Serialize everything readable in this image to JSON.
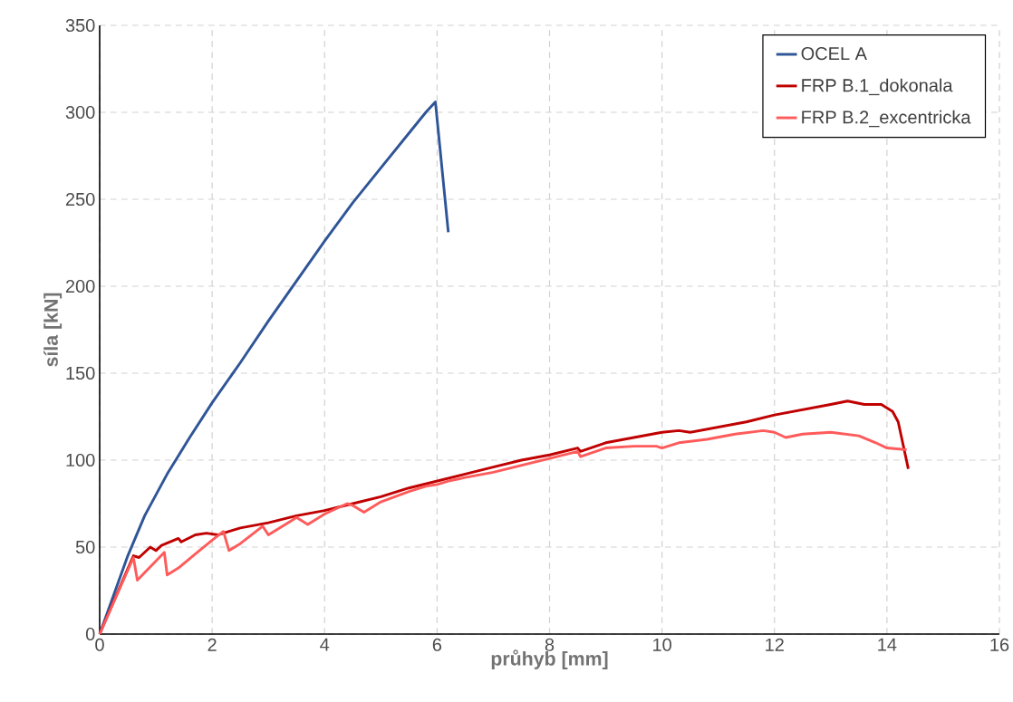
{
  "chart_data": {
    "type": "line",
    "xlabel": "průhyb [mm]",
    "ylabel": "síla [kN]",
    "xlim": [
      0,
      16
    ],
    "ylim": [
      0,
      350
    ],
    "xticks": [
      0,
      2,
      4,
      6,
      8,
      10,
      12,
      14,
      16
    ],
    "yticks": [
      0,
      50,
      100,
      150,
      200,
      250,
      300,
      350
    ],
    "grid": true,
    "legend": "top right",
    "marker": "none",
    "line_style": "solid",
    "series": [
      {
        "name": "OCEL A",
        "color": "#2f5597",
        "x": [
          0,
          0.5,
          0.8,
          1.0,
          1.2,
          1.6,
          2,
          2.5,
          3,
          3.5,
          4,
          4.5,
          5,
          5.5,
          5.8,
          5.97,
          6.2
        ],
        "values": [
          0,
          45,
          68,
          80,
          92,
          113,
          133,
          156,
          180,
          203,
          226,
          248,
          268,
          288,
          300,
          306,
          231
        ]
      },
      {
        "name": "FRP B.1_dokonala",
        "color": "#c00000",
        "x": [
          0,
          0.6,
          0.7,
          0.9,
          1.0,
          1.1,
          1.4,
          1.45,
          1.7,
          1.9,
          2.1,
          2.3,
          2.5,
          3,
          3.5,
          4,
          4.5,
          5,
          5.5,
          6,
          6.5,
          7,
          7.5,
          8,
          8.5,
          8.55,
          9,
          9.5,
          10,
          10.3,
          10.5,
          11,
          11.5,
          12,
          12.5,
          13,
          13.3,
          13.6,
          13.9,
          14.1,
          14.2,
          14.38
        ],
        "values": [
          0,
          45,
          44,
          50,
          48,
          51,
          55,
          53,
          57,
          58,
          57,
          59,
          61,
          64,
          68,
          71,
          75,
          79,
          84,
          88,
          92,
          96,
          100,
          103,
          107,
          105,
          110,
          113,
          116,
          117,
          116,
          119,
          122,
          126,
          129,
          132,
          134,
          132,
          132,
          128,
          122,
          95
        ]
      },
      {
        "name": "FRP B.2_excentricka",
        "color": "#ff5b5b",
        "x": [
          0,
          0.6,
          0.67,
          1.15,
          1.2,
          1.4,
          1.7,
          2.0,
          2.2,
          2.3,
          2.5,
          2.9,
          3.0,
          3.4,
          3.5,
          3.7,
          4,
          4.4,
          4.5,
          4.7,
          5,
          5.5,
          5.8,
          6,
          6.2,
          6.5,
          7,
          7.5,
          8,
          8.5,
          8.55,
          9,
          9.5,
          9.9,
          10,
          10.3,
          10.8,
          11.3,
          11.8,
          12,
          12.2,
          12.5,
          13,
          13.5,
          13.8,
          14,
          14.35
        ],
        "values": [
          0,
          44,
          31,
          47,
          34,
          38,
          46,
          54,
          59,
          48,
          52,
          62,
          57,
          65,
          67,
          63,
          69,
          75,
          74,
          70,
          76,
          82,
          85,
          86,
          88,
          90,
          93,
          97,
          101,
          105,
          102,
          107,
          108,
          108,
          107,
          110,
          112,
          115,
          117,
          116,
          113,
          115,
          116,
          114,
          110,
          107,
          106
        ]
      }
    ]
  }
}
